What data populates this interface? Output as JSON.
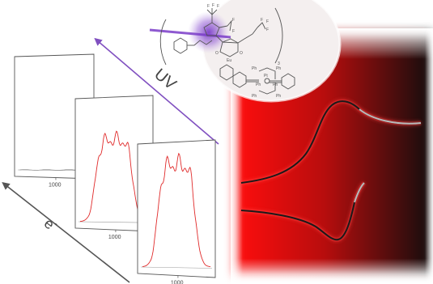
{
  "colors": {
    "uv_arrow": "#8050c0",
    "electron_arrow": "#555555",
    "spectrum_line": "#e02a2a",
    "cv_red": "#ff1010",
    "cv_dark": "#111111",
    "cv_trace": "#1a1a1a",
    "cv_trace_pale": "#bbbbbb"
  },
  "labels": {
    "uv": "UV",
    "electron": "e",
    "electron_superscript": "-"
  },
  "spectra": {
    "tick_label": "1000",
    "panels": [
      {
        "id": "back",
        "signal": "flat"
      },
      {
        "id": "middle",
        "signal": "emission"
      },
      {
        "id": "front",
        "signal": "emission-strong"
      }
    ]
  },
  "molecule": {
    "repeat_subscript": "3",
    "metal_labels": [
      "Eu",
      "Pt"
    ],
    "ligand_labels": [
      "F",
      "F",
      "F",
      "F",
      "F",
      "F",
      "F",
      "F",
      "O",
      "O",
      "Ph",
      "Ph",
      "Ph",
      "Ph",
      "Ph",
      "Ph"
    ]
  },
  "icons": [
    "light-beam-icon",
    "europium-complex-icon",
    "platinum-acetylide-icon"
  ]
}
